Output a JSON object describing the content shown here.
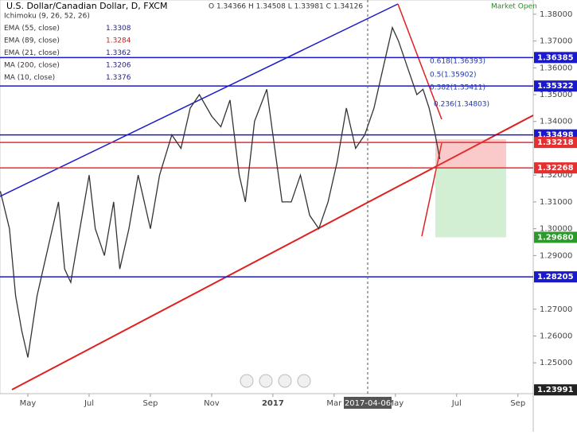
{
  "header": {
    "symbol": "U.S. Dollar/Canadian Dollar, D, FXCM",
    "ohlc": "O 1.34366 H 1.34508 L 1.33981 C 1.34126",
    "status": "Market Open"
  },
  "indicators": [
    {
      "name": "Ichimoku (9, 26, 52, 26)",
      "value": null
    },
    {
      "name": "EMA (55, close)",
      "value": "1.3308"
    },
    {
      "name": "EMA (89, close)",
      "value": "1.3284"
    },
    {
      "name": "EMA (21, close)",
      "value": "1.3362"
    },
    {
      "name": "MA (200, close)",
      "value": "1.3206"
    },
    {
      "name": "MA (10, close)",
      "value": "1.3376"
    }
  ],
  "fib_labels": [
    "0.618(1.36393)",
    "0.5(1.35902)",
    "0.382(1.35411)",
    "0.236(1.34803)"
  ],
  "crosshair_date": "2017-04-06",
  "chart_data": {
    "type": "line",
    "x": [
      -0.9,
      -0.6,
      -0.4,
      -0.2,
      0,
      0.3,
      0.6,
      1.0,
      1.2,
      1.4,
      1.7,
      2.0,
      2.2,
      2.5,
      2.8,
      3.0,
      3.3,
      3.6,
      4.0,
      4.3,
      4.7,
      5.0,
      5.3,
      5.6,
      6.0,
      6.3,
      6.6,
      6.9,
      7.1,
      7.4,
      7.8,
      8.0,
      8.3,
      8.6,
      8.9,
      9.2,
      9.5,
      9.8,
      10.1,
      10.4,
      10.7,
      11.0,
      11.3,
      11.6,
      11.9,
      12.1,
      12.4,
      12.7,
      12.9,
      13.1,
      13.3,
      13.45
    ],
    "series": [
      {
        "name": "USDCAD",
        "color": "#333333",
        "values": [
          1.314,
          1.3,
          1.275,
          1.262,
          1.252,
          1.275,
          1.29,
          1.31,
          1.285,
          1.28,
          1.3,
          1.32,
          1.3,
          1.29,
          1.31,
          1.285,
          1.3,
          1.32,
          1.3,
          1.32,
          1.335,
          1.33,
          1.345,
          1.35,
          1.342,
          1.338,
          1.348,
          1.32,
          1.31,
          1.34,
          1.352,
          1.335,
          1.31,
          1.31,
          1.32,
          1.305,
          1.3,
          1.31,
          1.325,
          1.345,
          1.33,
          1.335,
          1.345,
          1.36,
          1.375,
          1.37,
          1.36,
          1.35,
          1.352,
          1.345,
          1.335,
          1.326
        ]
      }
    ],
    "xlim": [
      -0.91,
      16.5
    ],
    "xticks": [
      {
        "value": 0,
        "label": "May"
      },
      {
        "value": 2,
        "label": "Jul"
      },
      {
        "value": 4,
        "label": "Sep"
      },
      {
        "value": 6,
        "label": "Nov"
      },
      {
        "value": 8,
        "label": "2017"
      },
      {
        "value": 10,
        "label": "Mar"
      },
      {
        "value": 12,
        "label": "May"
      },
      {
        "value": 14,
        "label": "Jul"
      },
      {
        "value": 16,
        "label": "Sep"
      }
    ],
    "ylim": [
      1.2385,
      1.3853
    ],
    "yticks": [
      {
        "value": 1.38,
        "label": "1.38000"
      },
      {
        "value": 1.37,
        "label": "1.37000"
      },
      {
        "value": 1.36,
        "label": "1.36000"
      },
      {
        "value": 1.35,
        "label": "1.35000"
      },
      {
        "value": 1.34,
        "label": "1.34000"
      },
      {
        "value": 1.32,
        "label": "1.32000"
      },
      {
        "value": 1.31,
        "label": "1.31000"
      },
      {
        "value": 1.3,
        "label": "1.30000"
      },
      {
        "value": 1.29,
        "label": "1.29000"
      },
      {
        "value": 1.27,
        "label": "1.27000"
      },
      {
        "value": 1.26,
        "label": "1.26000"
      },
      {
        "value": 1.25,
        "label": "1.25000"
      }
    ],
    "levels": [
      {
        "value": 1.36385,
        "label": "1.36385",
        "color": "#1a1acc"
      },
      {
        "value": 1.35322,
        "label": "1.35322",
        "color": "#1a1acc"
      },
      {
        "value": 1.33498,
        "label": "1.33498",
        "color": "#1a1acc"
      },
      {
        "value": 1.33218,
        "label": "1.33218",
        "color": "#e53030"
      },
      {
        "value": 1.32268,
        "label": "1.32268",
        "color": "#e53030"
      },
      {
        "value": 1.2968,
        "label": "1.29680",
        "color": "#2a9a2a"
      },
      {
        "value": 1.28205,
        "label": "1.28205",
        "color": "#1a1acc"
      },
      {
        "value": 1.23991,
        "label": "1.23991",
        "color": "#222222"
      }
    ]
  }
}
